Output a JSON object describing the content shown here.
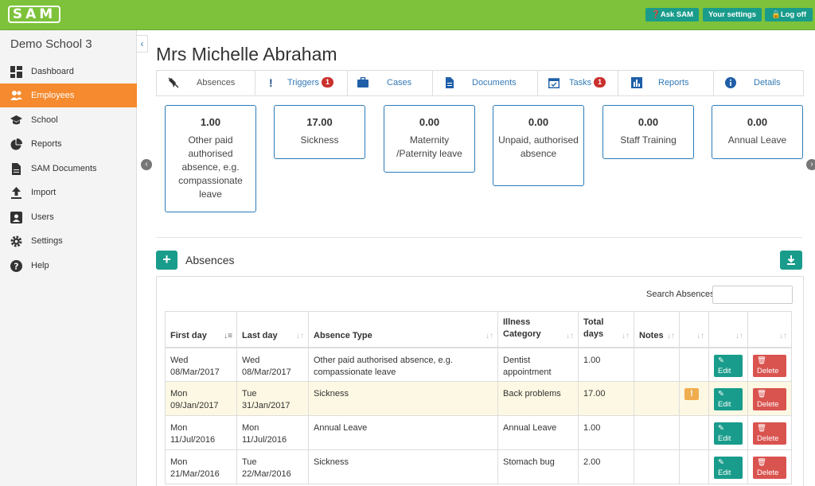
{
  "header": {
    "logo": "SAM",
    "ask_label": "Ask SAM",
    "settings_label": "Your settings",
    "logout_label": "Log off"
  },
  "sidebar": {
    "school_name": "Demo School 3",
    "items": [
      {
        "label": "Dashboard"
      },
      {
        "label": "Employees"
      },
      {
        "label": "School"
      },
      {
        "label": "Reports"
      },
      {
        "label": "SAM Documents"
      },
      {
        "label": "Import"
      },
      {
        "label": "Users"
      },
      {
        "label": "Settings"
      },
      {
        "label": "Help"
      }
    ]
  },
  "page": {
    "title": "Mrs Michelle Abraham"
  },
  "tabs": [
    {
      "label": "Absences",
      "badge": ""
    },
    {
      "label": "Triggers",
      "badge": "1"
    },
    {
      "label": "Cases",
      "badge": ""
    },
    {
      "label": "Documents",
      "badge": ""
    },
    {
      "label": "Tasks",
      "badge": "1"
    },
    {
      "label": "Reports",
      "badge": ""
    },
    {
      "label": "Details",
      "badge": ""
    }
  ],
  "cards": [
    {
      "value": "1.00",
      "label": "Other paid authorised absence, e.g. compassionate leave"
    },
    {
      "value": "17.00",
      "label": "Sickness"
    },
    {
      "value": "0.00",
      "label": "Maternity /Paternity leave"
    },
    {
      "value": "0.00",
      "label": "Unpaid, authorised absence"
    },
    {
      "value": "0.00",
      "label": "Staff Training"
    },
    {
      "value": "0.00",
      "label": "Annual Leave"
    }
  ],
  "absences": {
    "title": "Absences",
    "search_label": "Search Absences:",
    "search_value": "",
    "columns": [
      "First day",
      "Last day",
      "Absence Type",
      "Illness Category",
      "Total days",
      "Notes"
    ],
    "edit_label": "Edit",
    "delete_label": "Delete",
    "rows": [
      {
        "first": "Wed 08/Mar/2017",
        "last": "Wed 08/Mar/2017",
        "type": "Other paid authorised absence, e.g. compassionate leave",
        "illness": "Dentist appointment",
        "days": "1.00",
        "notes": "",
        "warning": ""
      },
      {
        "first": "Mon 09/Jan/2017",
        "last": "Tue 31/Jan/2017",
        "type": "Sickness",
        "illness": "Back problems",
        "days": "17.00",
        "notes": "",
        "warning": "!"
      },
      {
        "first": "Mon 11/Jul/2016",
        "last": "Mon 11/Jul/2016",
        "type": "Annual Leave",
        "illness": "Annual Leave",
        "days": "1.00",
        "notes": "",
        "warning": ""
      },
      {
        "first": "Mon 21/Mar/2016",
        "last": "Tue 22/Mar/2016",
        "type": "Sickness",
        "illness": "Stomach bug",
        "days": "2.00",
        "notes": "",
        "warning": ""
      }
    ]
  },
  "colors": {
    "topbar": "#7dc23a",
    "accent": "#199c8b",
    "active_nav": "#f58a2e",
    "link": "#337ab7",
    "danger": "#d9534f",
    "warning_row": "#fcf8e3"
  }
}
